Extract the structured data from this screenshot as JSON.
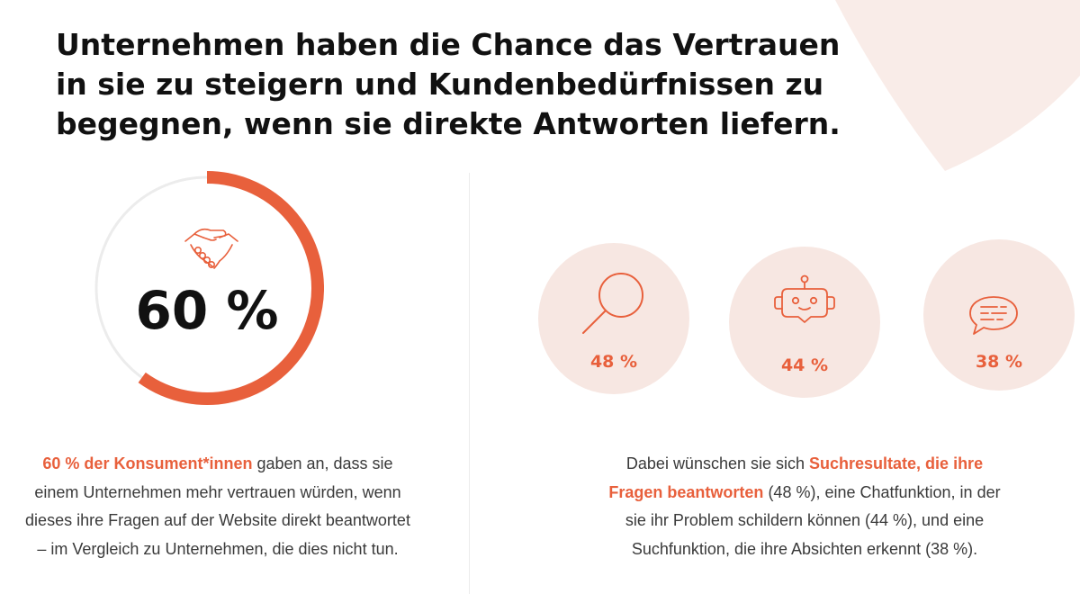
{
  "colors": {
    "accent": "#e8603c",
    "circle_bg": "#f7e7e2",
    "corner_shape": "#f9ece8"
  },
  "headline": {
    "lines": [
      "Unternehmen haben die Chance das Vertrauen",
      "in sie zu steigern und Kundenbedürfnissen zu",
      "begegnen, wenn sie direkte Antworten liefern."
    ]
  },
  "trust_stat": {
    "value": "60 %",
    "percent": 60,
    "icon": "handshake-icon",
    "description": {
      "highlight": "60 % der Konsument*innen",
      "text": " gaben an, dass sie einem Unternehmen mehr vertrauen würden, wenn dieses ihre Fragen auf der Website direkt beantwortet – im Vergleich zu Unternehmen, die dies nicht tun."
    }
  },
  "wishes": [
    {
      "value": "48 %",
      "icon": "magnifier-icon"
    },
    {
      "value": "44 %",
      "icon": "chatbot-icon"
    },
    {
      "value": "38 %",
      "icon": "chat-bubble-icon"
    }
  ],
  "wishes_description": {
    "part1": "Dabei wünschen sie sich ",
    "highlight": "Suchresultate, die ihre Fragen beantworten",
    "part2": " (48 %), eine Chatfunktion, in der sie ihr Problem schildern können (44 %), und eine Suchfunktion, die ihre Absichten erkennt (38 %)."
  }
}
